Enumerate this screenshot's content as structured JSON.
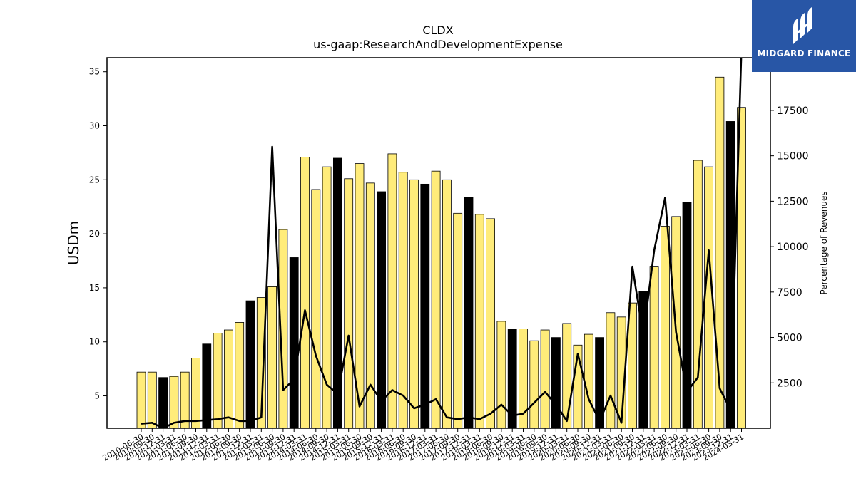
{
  "brand": {
    "name": "MIDGARD FINANCE",
    "bg_color": "#2856a6",
    "icon": "midgard-logo-icon"
  },
  "colors": {
    "bar_primary": "#ffec7a",
    "bar_highlight": "#000000",
    "line": "#000000"
  },
  "chart_data": {
    "type": "bar",
    "title": "CLDX",
    "subtitle": "us-gaap:ResearchAndDevelopmentExpense",
    "ylabel": "USDm",
    "ylabel_right": "Percentage of Revenues",
    "ylim": [
      2,
      36.3
    ],
    "ylim_right": [
      0,
      20400
    ],
    "yticks": [
      5,
      10,
      15,
      20,
      25,
      30,
      35
    ],
    "yticks_right": [
      2500,
      5000,
      7500,
      10000,
      12500,
      15000,
      17500
    ],
    "grid": false,
    "categories": [
      "2010-06-30",
      "2010-09-30",
      "2010-12-31",
      "2011-03-31",
      "2011-06-30",
      "2011-09-30",
      "2011-12-31",
      "2012-03-31",
      "2012-06-30",
      "2012-09-30",
      "2012-12-31",
      "2013-03-31",
      "2013-06-30",
      "2013-09-30",
      "2013-12-31",
      "2014-03-31",
      "2014-06-30",
      "2014-09-30",
      "2014-12-31",
      "2015-03-31",
      "2015-06-30",
      "2015-09-30",
      "2015-12-31",
      "2016-03-31",
      "2016-06-30",
      "2016-09-30",
      "2016-12-31",
      "2017-03-31",
      "2017-06-30",
      "2017-09-30",
      "2017-12-31",
      "2018-03-31",
      "2018-06-30",
      "2018-09-30",
      "2018-12-31",
      "2019-03-31",
      "2019-06-30",
      "2019-09-30",
      "2019-12-31",
      "2020-03-31",
      "2020-06-30",
      "2020-09-30",
      "2020-12-31",
      "2021-03-31",
      "2021-06-30",
      "2021-09-30",
      "2021-12-31",
      "2022-03-31",
      "2022-06-30",
      "2022-09-30",
      "2022-12-31",
      "2023-03-31",
      "2023-06-30",
      "2023-09-30",
      "2023-12-31",
      "2024-03-31"
    ],
    "x_tick_labels": [
      "2010-06-30",
      "2010-09-30",
      "2010-12-31",
      "2011-03-31",
      "2011-06-30",
      "2011-09-30",
      "2011-12-31",
      "2012-03-31",
      "2012-06-30",
      "2012-09-30",
      "2012-12-31",
      "2013-03-31",
      "2013-06-30",
      "2013-09-30",
      "2013-12-31",
      "2014-03-31",
      "2014-06-30",
      "2014-09-30",
      "2014-12-31",
      "2015-03-31",
      "2015-06-30",
      "2015-09-30",
      "2015-12-31",
      "2016-03-31",
      "2016-06-30",
      "2016-09-30",
      "2016-12-31",
      "2017-03-31",
      "2017-06-30",
      "2017-09-30",
      "2017-12-31",
      "2018-03-31",
      "2018-06-30",
      "2018-09-30",
      "2018-12-31",
      "2019-03-31",
      "2019-06-30",
      "2019-09-30",
      "2019-12-31",
      "2020-03-31",
      "2020-06-30",
      "2020-09-30",
      "2020-12-31",
      "2021-03-31",
      "2021-06-30",
      "2021-09-30",
      "2021-12-31",
      "2022-03-31",
      "2022-06-30",
      "2022-09-30",
      "2022-12-31",
      "2023-03-31",
      "2023-06-30",
      "2023-09-30",
      "2023-12-31",
      "2024-03-31"
    ],
    "series": [
      {
        "type": "bar",
        "values": [
          7.2,
          7.2,
          6.7,
          6.8,
          7.2,
          8.5,
          9.8,
          10.8,
          11.1,
          11.8,
          13.8,
          14.1,
          15.1,
          20.4,
          17.8,
          27.1,
          24.1,
          26.2,
          27.0,
          25.1,
          26.5,
          24.7,
          23.9,
          27.4,
          25.7,
          25.0,
          24.6,
          25.8,
          25.0,
          21.9,
          23.4,
          21.8,
          21.4,
          11.9,
          11.2,
          11.2,
          10.1,
          11.1,
          10.4,
          11.7,
          9.7,
          10.7,
          10.4,
          12.7,
          12.3,
          13.6,
          14.7,
          17.0,
          20.7,
          21.6,
          22.9,
          26.8,
          26.2,
          34.5,
          30.4,
          31.7
        ],
        "highlighted": [
          false,
          false,
          true,
          false,
          false,
          false,
          true,
          false,
          false,
          false,
          true,
          false,
          false,
          false,
          true,
          false,
          false,
          false,
          true,
          false,
          false,
          false,
          true,
          false,
          false,
          false,
          true,
          false,
          false,
          false,
          true,
          false,
          false,
          false,
          true,
          false,
          false,
          false,
          true,
          false,
          false,
          false,
          true,
          false,
          false,
          false,
          true,
          false,
          false,
          false,
          true,
          false,
          false,
          false,
          true,
          false
        ]
      },
      {
        "type": "line",
        "axis": "right",
        "values": [
          250,
          300,
          0,
          300,
          400,
          400,
          450,
          500,
          600,
          400,
          400,
          600,
          15500,
          2100,
          2700,
          6500,
          4000,
          2400,
          1900,
          5100,
          1200,
          2400,
          1500,
          2100,
          1800,
          1100,
          1300,
          1600,
          600,
          500,
          600,
          500,
          800,
          1300,
          700,
          800,
          1400,
          2000,
          1300,
          400,
          4100,
          1600,
          400,
          1800,
          300,
          8900,
          5100,
          9800,
          12700,
          5300,
          2000,
          2800,
          9800,
          2200,
          1000,
          21000
        ]
      }
    ]
  }
}
